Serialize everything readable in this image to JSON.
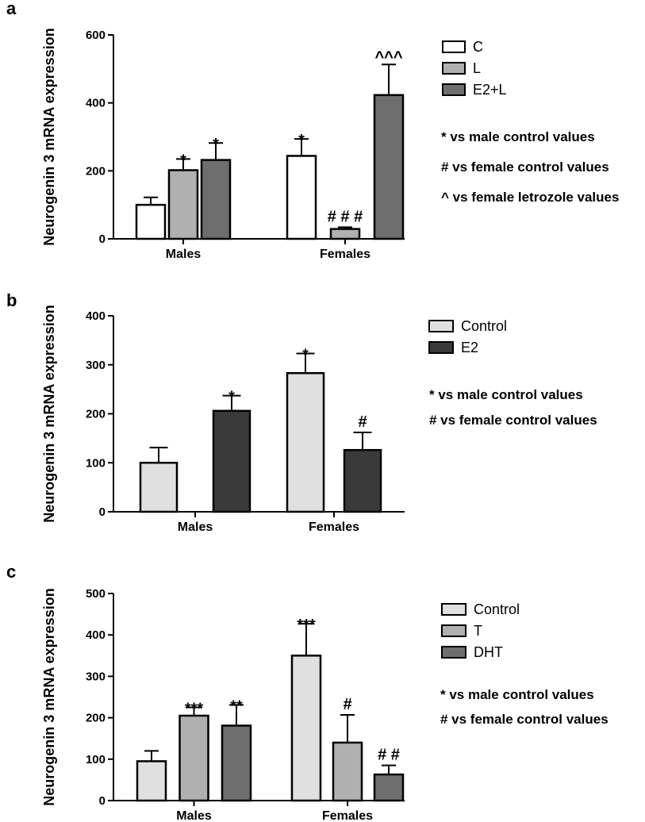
{
  "chart_data": [
    {
      "panel": "a",
      "type": "bar",
      "ylabel": "Neurogenin 3 mRNA expression",
      "ylim": [
        0,
        600
      ],
      "yticks": [
        0,
        200,
        400,
        600
      ],
      "categories": [
        "Males",
        "Females"
      ],
      "series": [
        {
          "name": "C",
          "color": "#ffffff",
          "values": [
            100,
            244
          ],
          "errors": [
            22,
            50
          ],
          "sig": [
            "",
            "*"
          ]
        },
        {
          "name": "L",
          "color": "#b0b0b0",
          "values": [
            202,
            29
          ],
          "errors": [
            33,
            5
          ],
          "sig": [
            "*",
            "# # #"
          ]
        },
        {
          "name": "E2+L",
          "color": "#6e6e6e",
          "values": [
            232,
            423
          ],
          "errors": [
            50,
            90
          ],
          "sig": [
            "*",
            "^^^"
          ]
        }
      ],
      "notes": [
        "* vs male control values",
        "# vs female control values",
        "^ vs female letrozole values"
      ]
    },
    {
      "panel": "b",
      "type": "bar",
      "ylabel": "Neurogenin 3 mRNA expression",
      "ylim": [
        0,
        400
      ],
      "yticks": [
        0,
        100,
        200,
        300,
        400
      ],
      "categories": [
        "Males",
        "Females"
      ],
      "series": [
        {
          "name": "Control",
          "color": "#e0e0e0",
          "values": [
            100,
            283
          ],
          "errors": [
            31,
            40
          ],
          "sig": [
            "",
            "*"
          ]
        },
        {
          "name": "E2",
          "color": "#3a3a3a",
          "values": [
            206,
            126
          ],
          "errors": [
            31,
            36
          ],
          "sig": [
            "*",
            "#"
          ]
        }
      ],
      "notes": [
        "* vs male control values",
        "# vs female control values"
      ]
    },
    {
      "panel": "c",
      "type": "bar",
      "ylabel": "Neurogenin 3 mRNA expression",
      "ylim": [
        0,
        500
      ],
      "yticks": [
        0,
        100,
        200,
        300,
        400,
        500
      ],
      "categories": [
        "Males",
        "Females"
      ],
      "series": [
        {
          "name": "Control",
          "color": "#e0e0e0",
          "values": [
            95,
            350
          ],
          "errors": [
            25,
            77
          ],
          "sig": [
            "",
            "***"
          ]
        },
        {
          "name": "T",
          "color": "#b0b0b0",
          "values": [
            205,
            140
          ],
          "errors": [
            20,
            67
          ],
          "sig": [
            "***",
            "#"
          ]
        },
        {
          "name": "DHT",
          "color": "#6e6e6e",
          "values": [
            181,
            63
          ],
          "errors": [
            50,
            22
          ],
          "sig": [
            "**",
            "# #"
          ]
        }
      ],
      "notes": [
        "* vs male control values",
        "# vs female control values"
      ]
    }
  ]
}
